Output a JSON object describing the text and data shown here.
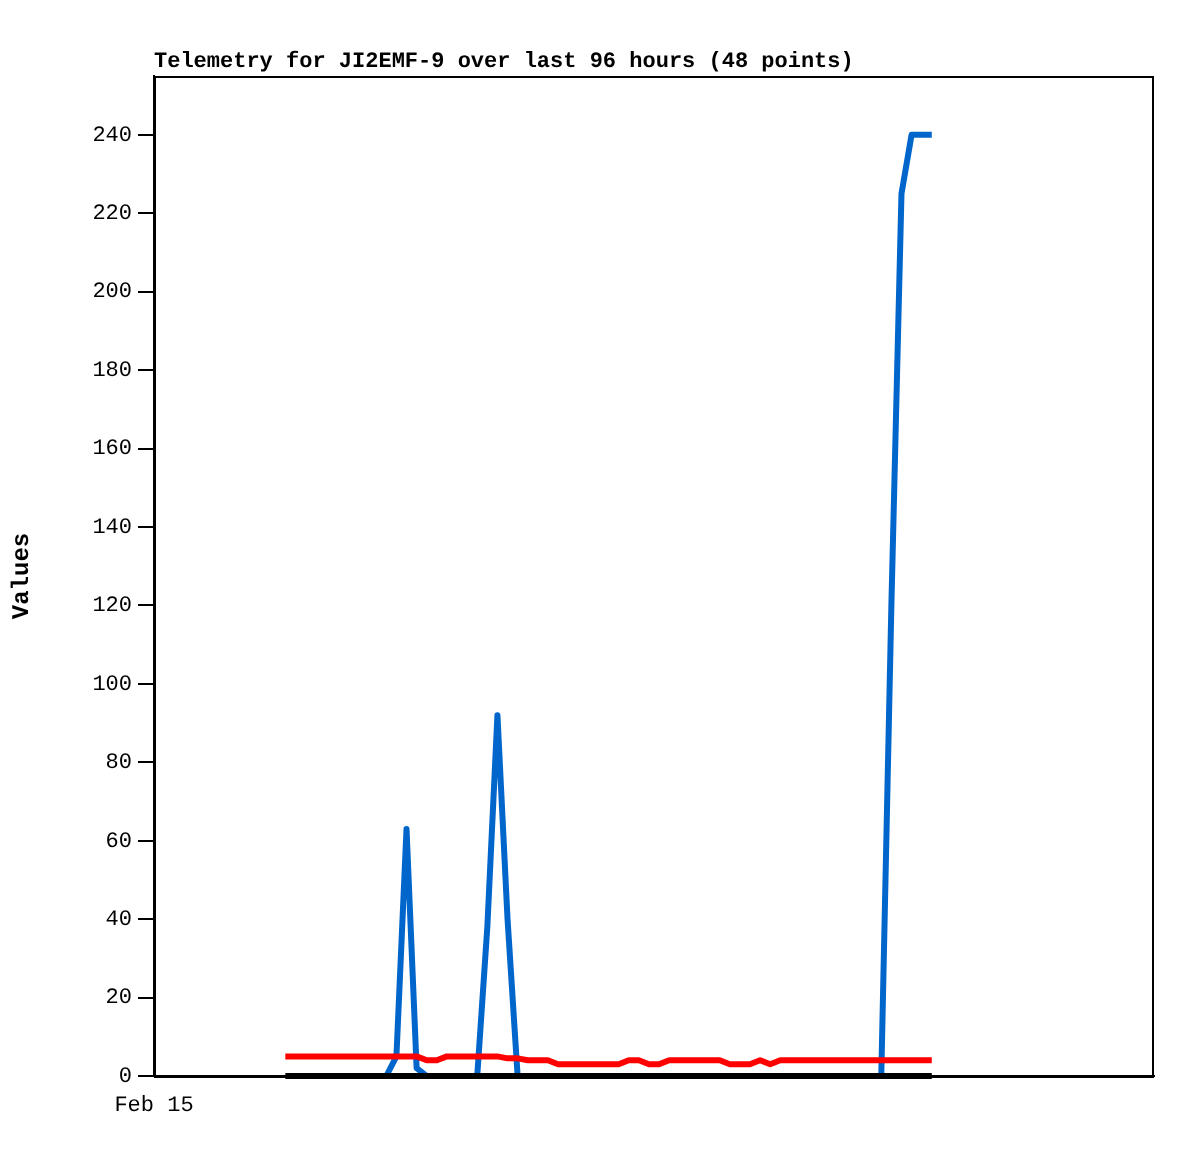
{
  "chart_data": {
    "type": "line",
    "title": "Telemetry for JI2EMF-9 over last 96 hours (48 points)",
    "ylabel": "Values",
    "categories": [
      "Feb 15",
      null,
      null,
      null,
      null,
      null,
      null,
      null,
      null,
      null,
      null,
      null,
      null,
      null,
      null,
      null,
      null,
      null,
      null,
      null,
      null,
      null,
      null,
      null,
      null,
      null,
      null,
      null,
      null,
      null,
      null,
      null,
      null,
      null,
      null,
      null,
      null,
      null,
      null,
      null,
      null,
      null,
      null,
      null,
      null,
      null,
      null,
      null,
      null,
      null,
      null,
      null,
      null,
      null,
      null,
      null,
      null,
      null,
      null,
      null,
      null,
      null,
      null,
      null,
      null,
      null,
      null,
      null,
      null,
      null,
      null,
      null,
      null,
      null,
      null,
      null,
      null,
      null,
      null,
      null,
      null,
      null,
      null,
      null,
      null,
      null,
      null,
      null,
      null,
      null,
      null,
      null,
      null,
      null,
      null,
      null,
      null,
      null,
      null,
      null
    ],
    "ylim": [
      0,
      255
    ],
    "yticks": [
      0,
      20,
      40,
      60,
      80,
      100,
      120,
      140,
      160,
      180,
      200,
      220,
      240
    ],
    "grid": false,
    "legend": false,
    "marker": "none",
    "line_style": "solid",
    "series": [
      {
        "color": "#0066cc",
        "values": [
          null,
          null,
          null,
          null,
          null,
          null,
          null,
          null,
          null,
          null,
          null,
          null,
          null,
          null,
          null,
          null,
          null,
          null,
          null,
          null,
          null,
          null,
          null,
          0,
          5,
          63,
          2,
          0,
          null,
          null,
          null,
          null,
          0,
          38,
          92,
          40,
          0,
          null,
          null,
          null,
          null,
          null,
          null,
          null,
          null,
          null,
          null,
          null,
          null,
          null,
          null,
          null,
          null,
          null,
          null,
          null,
          null,
          null,
          null,
          null,
          null,
          null,
          null,
          null,
          null,
          null,
          null,
          null,
          null,
          null,
          null,
          null,
          0,
          120,
          225,
          240,
          240,
          240,
          null,
          null,
          null,
          null,
          null,
          null,
          null,
          null,
          null,
          null,
          null,
          null,
          null,
          null,
          null,
          null,
          null,
          null,
          null,
          null,
          null,
          null
        ]
      },
      {
        "color": "#ff0000",
        "values": [
          null,
          null,
          null,
          null,
          null,
          null,
          null,
          null,
          null,
          null,
          null,
          null,
          null,
          5,
          5,
          5,
          5,
          5,
          5,
          5,
          5,
          5,
          5,
          5,
          5,
          5,
          5,
          4,
          4,
          5,
          5,
          5,
          5,
          5,
          5,
          4.5,
          4.5,
          4,
          4,
          4,
          3,
          3,
          3,
          3,
          3,
          3,
          3,
          4,
          4,
          3,
          3,
          4,
          4,
          4,
          4,
          4,
          4,
          3,
          3,
          3,
          4,
          3,
          4,
          4,
          4,
          4,
          4,
          4,
          4,
          4,
          4,
          4,
          4,
          4,
          4,
          4,
          4,
          4,
          null,
          null,
          null,
          null,
          null,
          null,
          null,
          null,
          null,
          null,
          null,
          null,
          null,
          null,
          null,
          null,
          null,
          null,
          null,
          null,
          null,
          null
        ]
      },
      {
        "color": "#000000",
        "values": [
          null,
          null,
          null,
          null,
          null,
          null,
          null,
          null,
          null,
          null,
          null,
          null,
          null,
          0,
          0,
          0,
          0,
          0,
          0,
          0,
          0,
          0,
          0,
          0,
          0,
          0,
          0,
          0,
          0,
          0,
          0,
          0,
          0,
          0,
          0,
          0,
          0,
          0,
          0,
          0,
          0,
          0,
          0,
          0,
          0,
          0,
          0,
          0,
          0,
          0,
          0,
          0,
          0,
          0,
          0,
          0,
          0,
          0,
          0,
          0,
          0,
          0,
          0,
          0,
          0,
          0,
          0,
          0,
          0,
          0,
          0,
          0,
          0,
          0,
          0,
          0,
          0,
          0,
          null,
          null,
          null,
          null,
          null,
          null,
          null,
          null,
          null,
          null,
          null,
          null,
          null,
          null,
          null,
          null,
          null,
          null,
          null,
          null,
          null,
          null
        ]
      }
    ]
  }
}
